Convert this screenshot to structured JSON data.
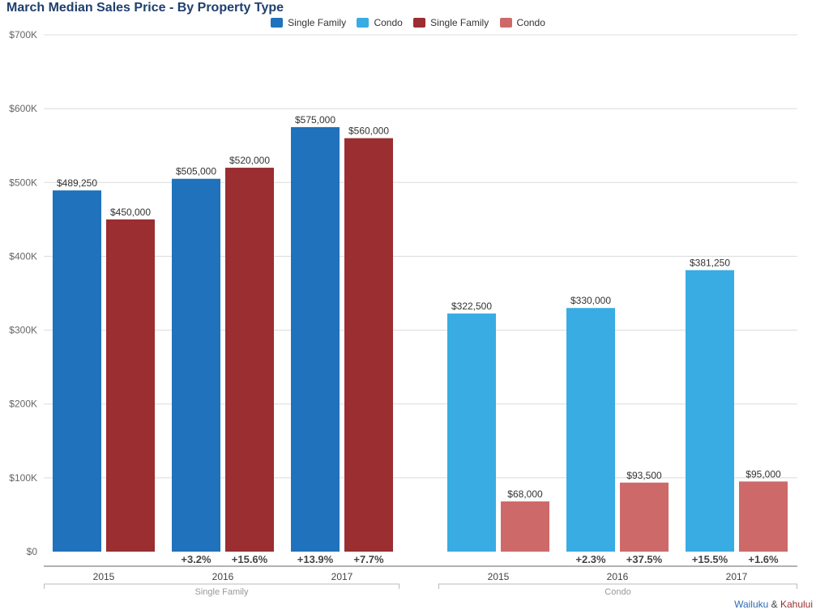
{
  "title": "March Median Sales Price - By Property Type",
  "legend": [
    {
      "label": "Single Family",
      "color": "#1f72bb"
    },
    {
      "label": "Condo",
      "color": "#38ace3"
    },
    {
      "label": "Single Family",
      "color": "#9a2e30"
    },
    {
      "label": "Condo",
      "color": "#cd6a69"
    }
  ],
  "footer": {
    "part1": "Wailuku",
    "amp": " & ",
    "part2": "Kahului",
    "color1": "#2d6db3",
    "color2": "#9a2e30"
  },
  "chart_data": {
    "type": "bar",
    "ylim": [
      0,
      700000
    ],
    "ytick_values": [
      0,
      100000,
      200000,
      300000,
      400000,
      500000,
      600000,
      700000
    ],
    "ytick_labels": [
      "$0",
      "$100K",
      "$200K",
      "$300K",
      "$400K",
      "$500K",
      "$600K",
      "$700K"
    ],
    "grid": true,
    "legend_position": "top-center",
    "groups": [
      {
        "label": "Single Family",
        "years": [
          {
            "year": "2015",
            "bars": [
              {
                "value": 489250,
                "label": "$489,250",
                "color": "#1f72bb"
              },
              {
                "value": 450000,
                "label": "$450,000",
                "color": "#9a2e30"
              }
            ],
            "changes": [
              "",
              ""
            ]
          },
          {
            "year": "2016",
            "bars": [
              {
                "value": 505000,
                "label": "$505,000",
                "color": "#1f72bb"
              },
              {
                "value": 520000,
                "label": "$520,000",
                "color": "#9a2e30"
              }
            ],
            "changes": [
              "+3.2%",
              "+15.6%"
            ]
          },
          {
            "year": "2017",
            "bars": [
              {
                "value": 575000,
                "label": "$575,000",
                "color": "#1f72bb"
              },
              {
                "value": 560000,
                "label": "$560,000",
                "color": "#9a2e30"
              }
            ],
            "changes": [
              "+13.9%",
              "+7.7%"
            ]
          }
        ]
      },
      {
        "label": "Condo",
        "years": [
          {
            "year": "2015",
            "bars": [
              {
                "value": 322500,
                "label": "$322,500",
                "color": "#38ace3"
              },
              {
                "value": 68000,
                "label": "$68,000",
                "color": "#cd6a69"
              }
            ],
            "changes": [
              "",
              ""
            ]
          },
          {
            "year": "2016",
            "bars": [
              {
                "value": 330000,
                "label": "$330,000",
                "color": "#38ace3"
              },
              {
                "value": 93500,
                "label": "$93,500",
                "color": "#cd6a69"
              }
            ],
            "changes": [
              "+2.3%",
              "+37.5%"
            ]
          },
          {
            "year": "2017",
            "bars": [
              {
                "value": 381250,
                "label": "$381,250",
                "color": "#38ace3"
              },
              {
                "value": 95000,
                "label": "$95,000",
                "color": "#cd6a69"
              }
            ],
            "changes": [
              "+15.5%",
              "+1.6%"
            ]
          }
        ]
      }
    ]
  }
}
